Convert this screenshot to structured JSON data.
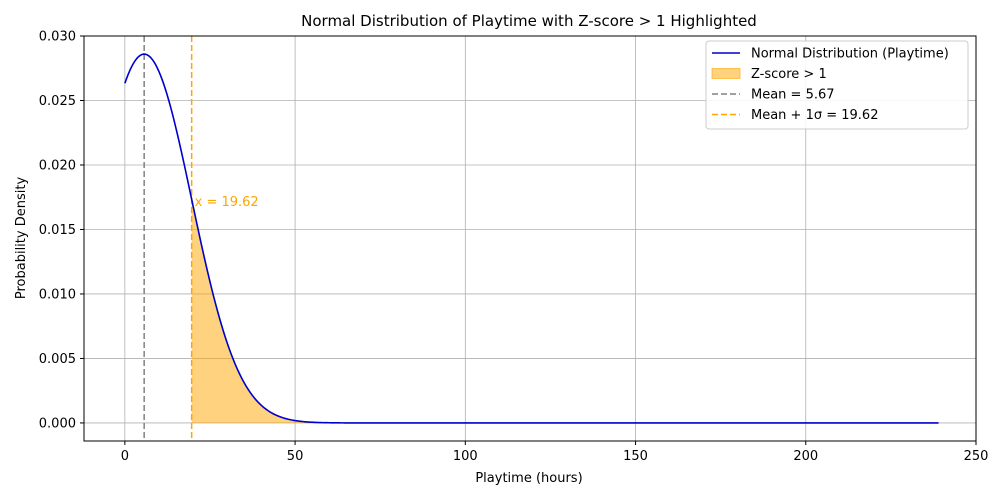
{
  "chart_data": {
    "type": "line",
    "title": "Normal Distribution of Playtime with Z-score > 1 Highlighted",
    "xlabel": "Playtime (hours)",
    "ylabel": "Probability Density",
    "xlim": [
      -12,
      250
    ],
    "ylim": [
      -0.0014,
      0.03
    ],
    "x_ticks": [
      0,
      50,
      100,
      150,
      200,
      250
    ],
    "x_tick_labels": [
      "0",
      "50",
      "100",
      "150",
      "200",
      "250"
    ],
    "y_ticks": [
      0.0,
      0.005,
      0.01,
      0.015,
      0.02,
      0.025,
      0.03
    ],
    "y_tick_labels": [
      "0.000",
      "0.005",
      "0.010",
      "0.015",
      "0.020",
      "0.025",
      "0.030"
    ],
    "grid": true,
    "legend_position": "top-right",
    "distribution": {
      "mean": 5.67,
      "std": 13.95,
      "x_min": 0,
      "x_max": 239
    },
    "series": [
      {
        "name": "Normal Distribution (Playtime)",
        "kind": "line",
        "color": "#0000cc"
      },
      {
        "name": "Z-score > 1",
        "kind": "fill",
        "from_x": 19.62,
        "color": "#ffa500",
        "opacity": 0.5
      },
      {
        "name": "Mean = 5.67",
        "kind": "vline",
        "x": 5.67,
        "color": "#808080"
      },
      {
        "name": "Mean + 1σ = 19.62",
        "kind": "vline",
        "x": 19.62,
        "color": "#ffa500"
      }
    ],
    "annotations": [
      {
        "text": "x = 19.62",
        "x": 19.62,
        "y": 0.0172,
        "color": "#ffa500"
      }
    ]
  }
}
